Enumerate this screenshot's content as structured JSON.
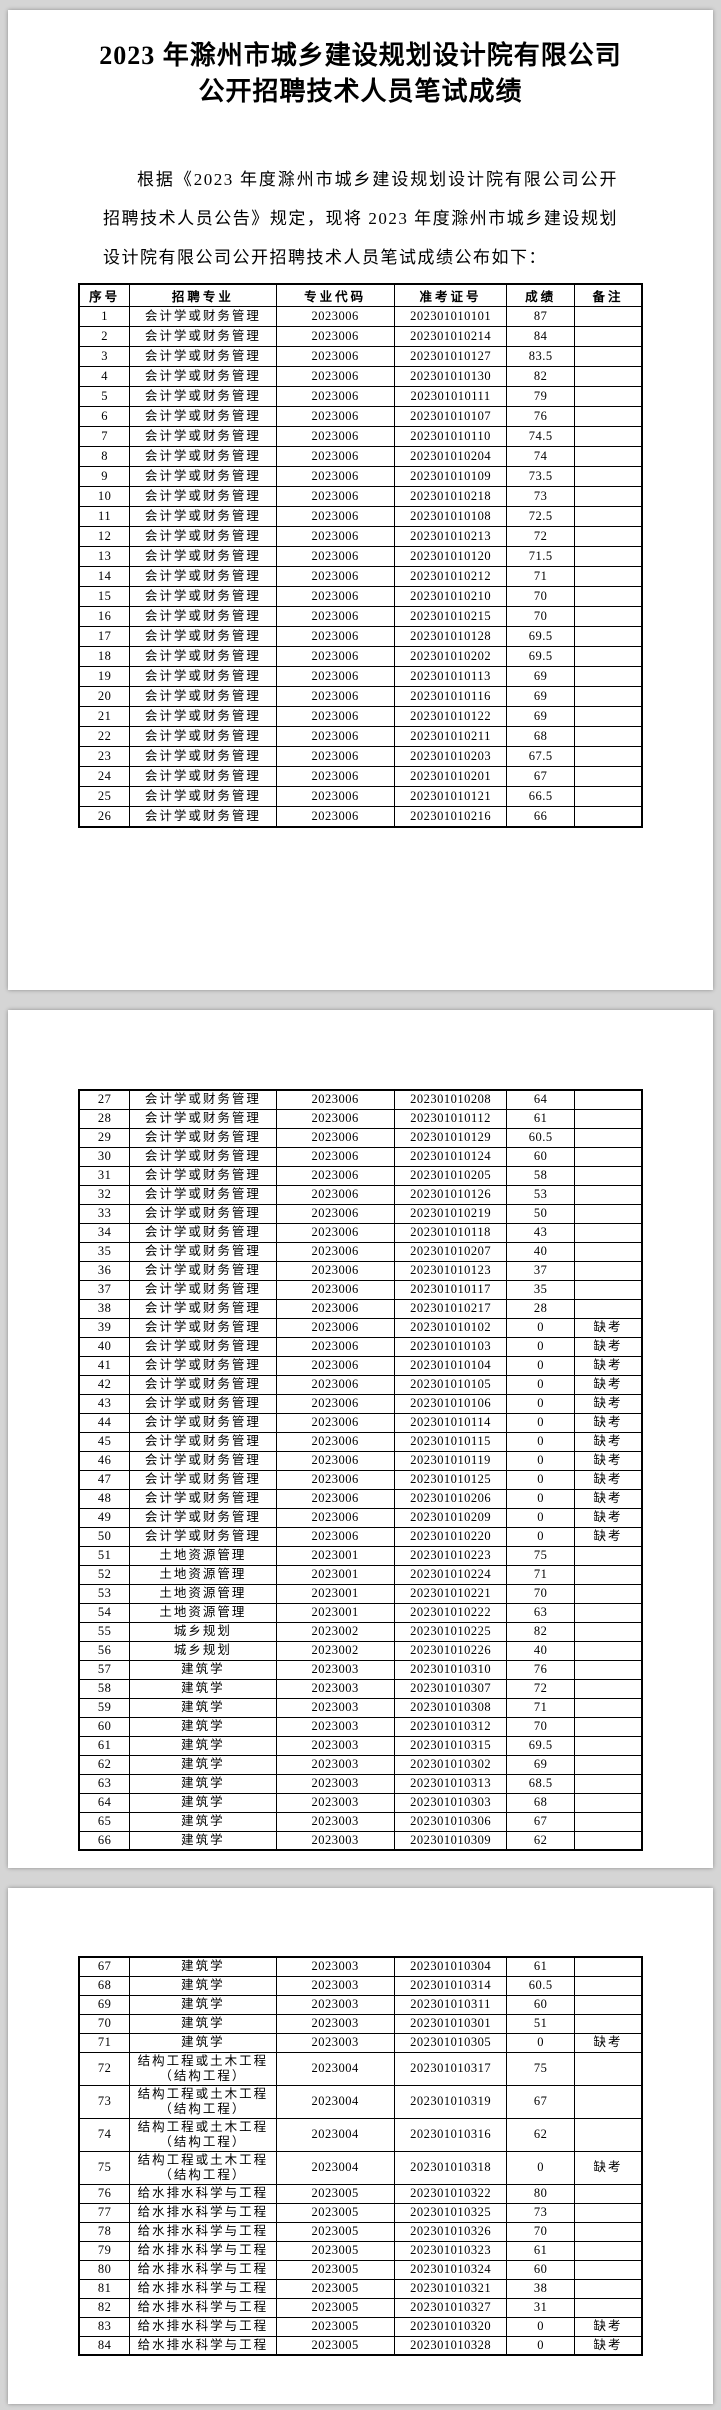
{
  "doc": {
    "title": "2023 年滁州市城乡建设规划设计院有限公司公开招聘技术人员笔试成绩",
    "intro": "根据《2023 年度滁州市城乡建设规划设计院有限公司公开招聘技术人员公告》规定，现将 2023 年度滁州市城乡建设规划设计院有限公司公开招聘技术人员笔试成绩公布如下："
  },
  "colors": {
    "canvas_bg": "#d5d5d5",
    "page_bg": "#ffffff",
    "text": "#000000",
    "border": "#000000"
  },
  "table": {
    "headers": [
      "序号",
      "招聘专业",
      "专业代码",
      "准考证号",
      "成绩",
      "备注"
    ],
    "col_widths": [
      "9%",
      "26%",
      "21%",
      "20%",
      "12%",
      "12%"
    ],
    "absent_label": "缺考",
    "pages": [
      {
        "page": 1,
        "start": 0,
        "end": 26,
        "show_header": true
      },
      {
        "page": 2,
        "start": 26,
        "end": 66,
        "show_header": false
      },
      {
        "page": 3,
        "start": 66,
        "end": 84,
        "show_header": false
      }
    ],
    "rows": [
      [
        "1",
        "会计学或财务管理",
        "2023006",
        "202301010101",
        "87",
        ""
      ],
      [
        "2",
        "会计学或财务管理",
        "2023006",
        "202301010214",
        "84",
        ""
      ],
      [
        "3",
        "会计学或财务管理",
        "2023006",
        "202301010127",
        "83.5",
        ""
      ],
      [
        "4",
        "会计学或财务管理",
        "2023006",
        "202301010130",
        "82",
        ""
      ],
      [
        "5",
        "会计学或财务管理",
        "2023006",
        "202301010111",
        "79",
        ""
      ],
      [
        "6",
        "会计学或财务管理",
        "2023006",
        "202301010107",
        "76",
        ""
      ],
      [
        "7",
        "会计学或财务管理",
        "2023006",
        "202301010110",
        "74.5",
        ""
      ],
      [
        "8",
        "会计学或财务管理",
        "2023006",
        "202301010204",
        "74",
        ""
      ],
      [
        "9",
        "会计学或财务管理",
        "2023006",
        "202301010109",
        "73.5",
        ""
      ],
      [
        "10",
        "会计学或财务管理",
        "2023006",
        "202301010218",
        "73",
        ""
      ],
      [
        "11",
        "会计学或财务管理",
        "2023006",
        "202301010108",
        "72.5",
        ""
      ],
      [
        "12",
        "会计学或财务管理",
        "2023006",
        "202301010213",
        "72",
        ""
      ],
      [
        "13",
        "会计学或财务管理",
        "2023006",
        "202301010120",
        "71.5",
        ""
      ],
      [
        "14",
        "会计学或财务管理",
        "2023006",
        "202301010212",
        "71",
        ""
      ],
      [
        "15",
        "会计学或财务管理",
        "2023006",
        "202301010210",
        "70",
        ""
      ],
      [
        "16",
        "会计学或财务管理",
        "2023006",
        "202301010215",
        "70",
        ""
      ],
      [
        "17",
        "会计学或财务管理",
        "2023006",
        "202301010128",
        "69.5",
        ""
      ],
      [
        "18",
        "会计学或财务管理",
        "2023006",
        "202301010202",
        "69.5",
        ""
      ],
      [
        "19",
        "会计学或财务管理",
        "2023006",
        "202301010113",
        "69",
        ""
      ],
      [
        "20",
        "会计学或财务管理",
        "2023006",
        "202301010116",
        "69",
        ""
      ],
      [
        "21",
        "会计学或财务管理",
        "2023006",
        "202301010122",
        "69",
        ""
      ],
      [
        "22",
        "会计学或财务管理",
        "2023006",
        "202301010211",
        "68",
        ""
      ],
      [
        "23",
        "会计学或财务管理",
        "2023006",
        "202301010203",
        "67.5",
        ""
      ],
      [
        "24",
        "会计学或财务管理",
        "2023006",
        "202301010201",
        "67",
        ""
      ],
      [
        "25",
        "会计学或财务管理",
        "2023006",
        "202301010121",
        "66.5",
        ""
      ],
      [
        "26",
        "会计学或财务管理",
        "2023006",
        "202301010216",
        "66",
        ""
      ],
      [
        "27",
        "会计学或财务管理",
        "2023006",
        "202301010208",
        "64",
        ""
      ],
      [
        "28",
        "会计学或财务管理",
        "2023006",
        "202301010112",
        "61",
        ""
      ],
      [
        "29",
        "会计学或财务管理",
        "2023006",
        "202301010129",
        "60.5",
        ""
      ],
      [
        "30",
        "会计学或财务管理",
        "2023006",
        "202301010124",
        "60",
        ""
      ],
      [
        "31",
        "会计学或财务管理",
        "2023006",
        "202301010205",
        "58",
        ""
      ],
      [
        "32",
        "会计学或财务管理",
        "2023006",
        "202301010126",
        "53",
        ""
      ],
      [
        "33",
        "会计学或财务管理",
        "2023006",
        "202301010219",
        "50",
        ""
      ],
      [
        "34",
        "会计学或财务管理",
        "2023006",
        "202301010118",
        "43",
        ""
      ],
      [
        "35",
        "会计学或财务管理",
        "2023006",
        "202301010207",
        "40",
        ""
      ],
      [
        "36",
        "会计学或财务管理",
        "2023006",
        "202301010123",
        "37",
        ""
      ],
      [
        "37",
        "会计学或财务管理",
        "2023006",
        "202301010117",
        "35",
        ""
      ],
      [
        "38",
        "会计学或财务管理",
        "2023006",
        "202301010217",
        "28",
        ""
      ],
      [
        "39",
        "会计学或财务管理",
        "2023006",
        "202301010102",
        "0",
        "缺考"
      ],
      [
        "40",
        "会计学或财务管理",
        "2023006",
        "202301010103",
        "0",
        "缺考"
      ],
      [
        "41",
        "会计学或财务管理",
        "2023006",
        "202301010104",
        "0",
        "缺考"
      ],
      [
        "42",
        "会计学或财务管理",
        "2023006",
        "202301010105",
        "0",
        "缺考"
      ],
      [
        "43",
        "会计学或财务管理",
        "2023006",
        "202301010106",
        "0",
        "缺考"
      ],
      [
        "44",
        "会计学或财务管理",
        "2023006",
        "202301010114",
        "0",
        "缺考"
      ],
      [
        "45",
        "会计学或财务管理",
        "2023006",
        "202301010115",
        "0",
        "缺考"
      ],
      [
        "46",
        "会计学或财务管理",
        "2023006",
        "202301010119",
        "0",
        "缺考"
      ],
      [
        "47",
        "会计学或财务管理",
        "2023006",
        "202301010125",
        "0",
        "缺考"
      ],
      [
        "48",
        "会计学或财务管理",
        "2023006",
        "202301010206",
        "0",
        "缺考"
      ],
      [
        "49",
        "会计学或财务管理",
        "2023006",
        "202301010209",
        "0",
        "缺考"
      ],
      [
        "50",
        "会计学或财务管理",
        "2023006",
        "202301010220",
        "0",
        "缺考"
      ],
      [
        "51",
        "土地资源管理",
        "2023001",
        "202301010223",
        "75",
        ""
      ],
      [
        "52",
        "土地资源管理",
        "2023001",
        "202301010224",
        "71",
        ""
      ],
      [
        "53",
        "土地资源管理",
        "2023001",
        "202301010221",
        "70",
        ""
      ],
      [
        "54",
        "土地资源管理",
        "2023001",
        "202301010222",
        "63",
        ""
      ],
      [
        "55",
        "城乡规划",
        "2023002",
        "202301010225",
        "82",
        ""
      ],
      [
        "56",
        "城乡规划",
        "2023002",
        "202301010226",
        "40",
        ""
      ],
      [
        "57",
        "建筑学",
        "2023003",
        "202301010310",
        "76",
        ""
      ],
      [
        "58",
        "建筑学",
        "2023003",
        "202301010307",
        "72",
        ""
      ],
      [
        "59",
        "建筑学",
        "2023003",
        "202301010308",
        "71",
        ""
      ],
      [
        "60",
        "建筑学",
        "2023003",
        "202301010312",
        "70",
        ""
      ],
      [
        "61",
        "建筑学",
        "2023003",
        "202301010315",
        "69.5",
        ""
      ],
      [
        "62",
        "建筑学",
        "2023003",
        "202301010302",
        "69",
        ""
      ],
      [
        "63",
        "建筑学",
        "2023003",
        "202301010313",
        "68.5",
        ""
      ],
      [
        "64",
        "建筑学",
        "2023003",
        "202301010303",
        "68",
        ""
      ],
      [
        "65",
        "建筑学",
        "2023003",
        "202301010306",
        "67",
        ""
      ],
      [
        "66",
        "建筑学",
        "2023003",
        "202301010309",
        "62",
        ""
      ],
      [
        "67",
        "建筑学",
        "2023003",
        "202301010304",
        "61",
        ""
      ],
      [
        "68",
        "建筑学",
        "2023003",
        "202301010314",
        "60.5",
        ""
      ],
      [
        "69",
        "建筑学",
        "2023003",
        "202301010311",
        "60",
        ""
      ],
      [
        "70",
        "建筑学",
        "2023003",
        "202301010301",
        "51",
        ""
      ],
      [
        "71",
        "建筑学",
        "2023003",
        "202301010305",
        "0",
        "缺考"
      ],
      [
        "72",
        "结构工程或土木工程（结构工程）",
        "2023004",
        "202301010317",
        "75",
        ""
      ],
      [
        "73",
        "结构工程或土木工程（结构工程）",
        "2023004",
        "202301010319",
        "67",
        ""
      ],
      [
        "74",
        "结构工程或土木工程（结构工程）",
        "2023004",
        "202301010316",
        "62",
        ""
      ],
      [
        "75",
        "结构工程或土木工程（结构工程）",
        "2023004",
        "202301010318",
        "0",
        "缺考"
      ],
      [
        "76",
        "给水排水科学与工程",
        "2023005",
        "202301010322",
        "80",
        ""
      ],
      [
        "77",
        "给水排水科学与工程",
        "2023005",
        "202301010325",
        "73",
        ""
      ],
      [
        "78",
        "给水排水科学与工程",
        "2023005",
        "202301010326",
        "70",
        ""
      ],
      [
        "79",
        "给水排水科学与工程",
        "2023005",
        "202301010323",
        "61",
        ""
      ],
      [
        "80",
        "给水排水科学与工程",
        "2023005",
        "202301010324",
        "60",
        ""
      ],
      [
        "81",
        "给水排水科学与工程",
        "2023005",
        "202301010321",
        "38",
        ""
      ],
      [
        "82",
        "给水排水科学与工程",
        "2023005",
        "202301010327",
        "31",
        ""
      ],
      [
        "83",
        "给水排水科学与工程",
        "2023005",
        "202301010320",
        "0",
        "缺考"
      ],
      [
        "84",
        "给水排水科学与工程",
        "2023005",
        "202301010328",
        "0",
        "缺考"
      ]
    ]
  }
}
